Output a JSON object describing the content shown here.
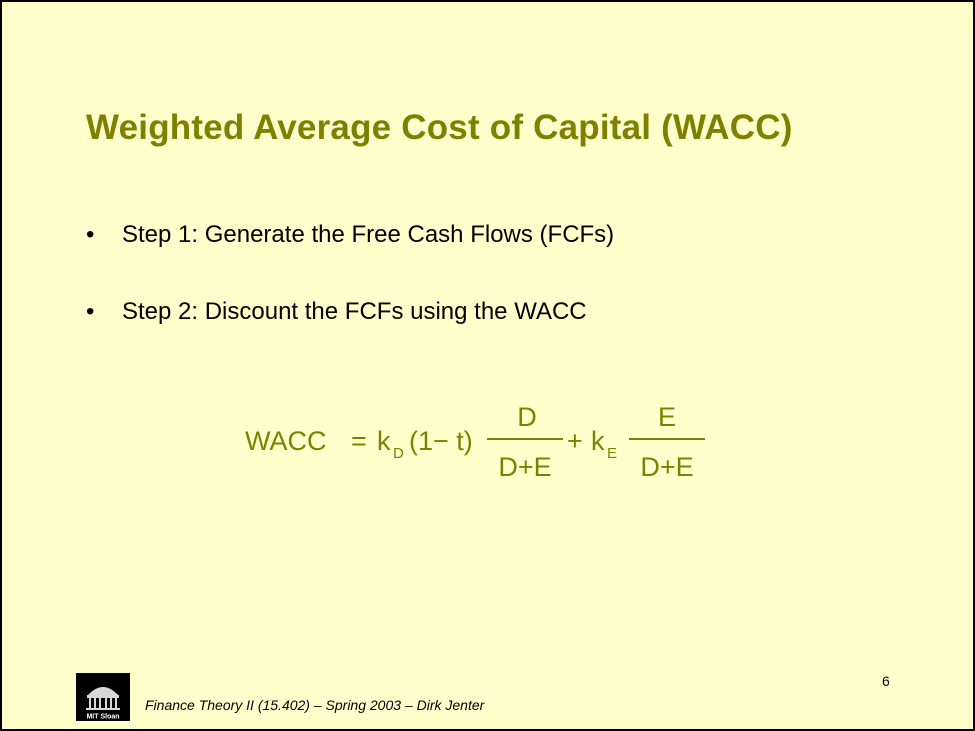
{
  "slide": {
    "title": "Weighted Average Cost of Capital (WACC)",
    "bullets": [
      {
        "marker": "•",
        "text": "Step 1: Generate the Free Cash Flows (FCFs)"
      },
      {
        "marker": "•",
        "text": "Step 2: Discount the FCFs using the WACC"
      }
    ],
    "formula": {
      "lhs": "WACC",
      "equals": "=",
      "kd": "k",
      "kd_sub": "D",
      "tax_term": "(1− t)",
      "frac1_num": "D",
      "frac1_den": "D+E",
      "plus": "+",
      "ke": "k",
      "ke_sub": "E",
      "frac2_num": "E",
      "frac2_den": "D+E"
    },
    "page_number": "6",
    "footer": "Finance Theory II (15.402) – Spring 2003 – Dirk Jenter",
    "logo_text": "MIT Sloan",
    "colors": {
      "background": "#ffffcc",
      "title": "#808000",
      "formula": "#808000",
      "text": "#000000"
    }
  }
}
